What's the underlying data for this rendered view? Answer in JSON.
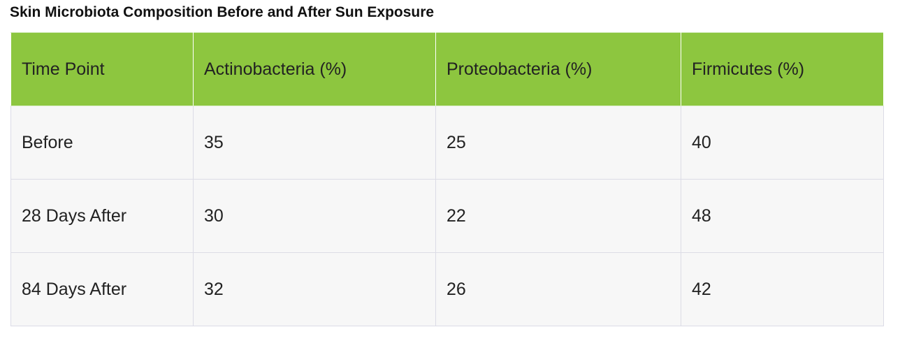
{
  "title": "Skin Microbiota Composition Before and After Sun Exposure",
  "table": {
    "headers": [
      "Time Point",
      "Actinobacteria (%)",
      "Proteobacteria (%)",
      "Firmicutes (%)"
    ],
    "rows": [
      [
        "Before",
        35,
        25,
        40
      ],
      [
        "28 Days After",
        30,
        22,
        48
      ],
      [
        "84 Days After",
        32,
        26,
        42
      ]
    ]
  }
}
